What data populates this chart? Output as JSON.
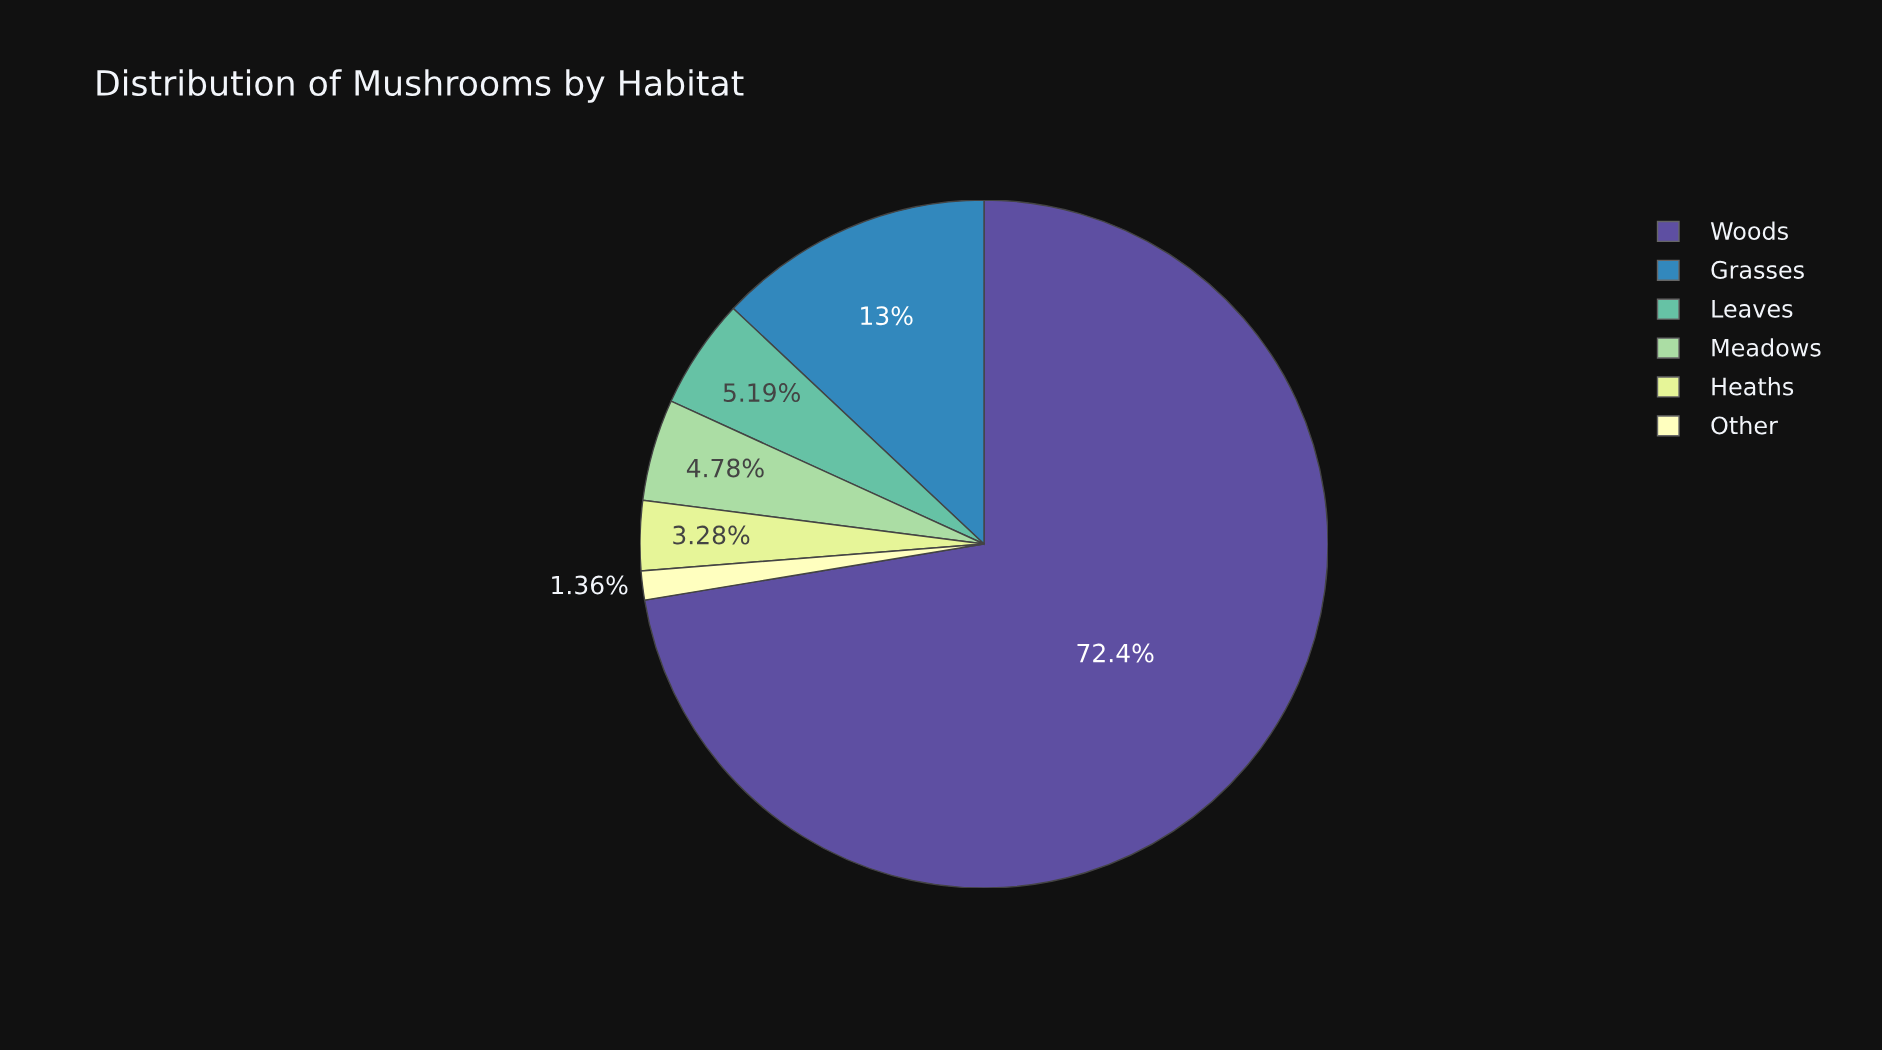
{
  "chart_data": {
    "type": "pie",
    "title": "Distribution of Mushrooms by Habitat",
    "categories": [
      "Woods",
      "Grasses",
      "Leaves",
      "Meadows",
      "Heaths",
      "Other"
    ],
    "values": [
      72.4,
      13,
      5.19,
      4.78,
      3.28,
      1.36
    ],
    "value_labels": [
      "72.4%",
      "13%",
      "5.19%",
      "4.78%",
      "3.28%",
      "1.36%"
    ],
    "colors": [
      "#5e4fa2",
      "#3288bd",
      "#66c2a5",
      "#abdda4",
      "#e6f598",
      "#ffffbf"
    ],
    "legend": "top right"
  }
}
